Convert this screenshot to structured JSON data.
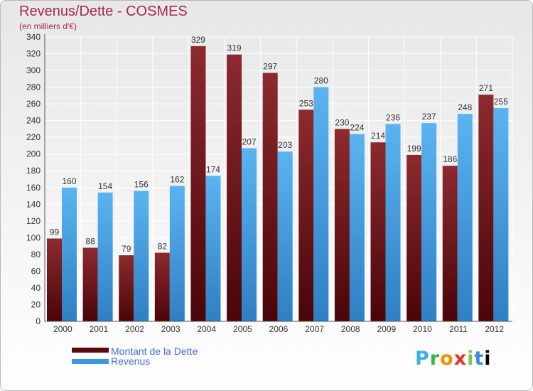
{
  "title": "Revenus/Dette - COSMES",
  "subtitle": "(en milliers d'€)",
  "colors": {
    "dette": "#6b0f14",
    "revenus": "#3a98e0",
    "title": "#a8284a",
    "legend_text": "#4a6ad8",
    "axis_text": "#333333",
    "grid": "#ffffff"
  },
  "legend": {
    "dette": "Montant de la Dette",
    "revenus": "Revenus"
  },
  "logo": "Proxiti",
  "chart_data": {
    "type": "bar",
    "title": "Revenus/Dette - COSMES",
    "subtitle": "(en milliers d'€)",
    "categories": [
      "2000",
      "2001",
      "2002",
      "2003",
      "2004",
      "2005",
      "2006",
      "2007",
      "2008",
      "2009",
      "2010",
      "2011",
      "2012"
    ],
    "series": [
      {
        "name": "Montant de la Dette",
        "values": [
          99,
          88,
          79,
          82,
          329,
          319,
          297,
          253,
          230,
          214,
          199,
          186,
          271
        ]
      },
      {
        "name": "Revenus",
        "values": [
          160,
          154,
          156,
          162,
          174,
          207,
          203,
          280,
          224,
          236,
          237,
          248,
          255
        ]
      }
    ],
    "yticks": [
      0,
      20,
      40,
      60,
      80,
      100,
      120,
      140,
      160,
      180,
      200,
      220,
      240,
      260,
      280,
      300,
      320,
      340
    ],
    "ylim": [
      0,
      340
    ],
    "grid": true,
    "legend_position": "bottom-left"
  }
}
